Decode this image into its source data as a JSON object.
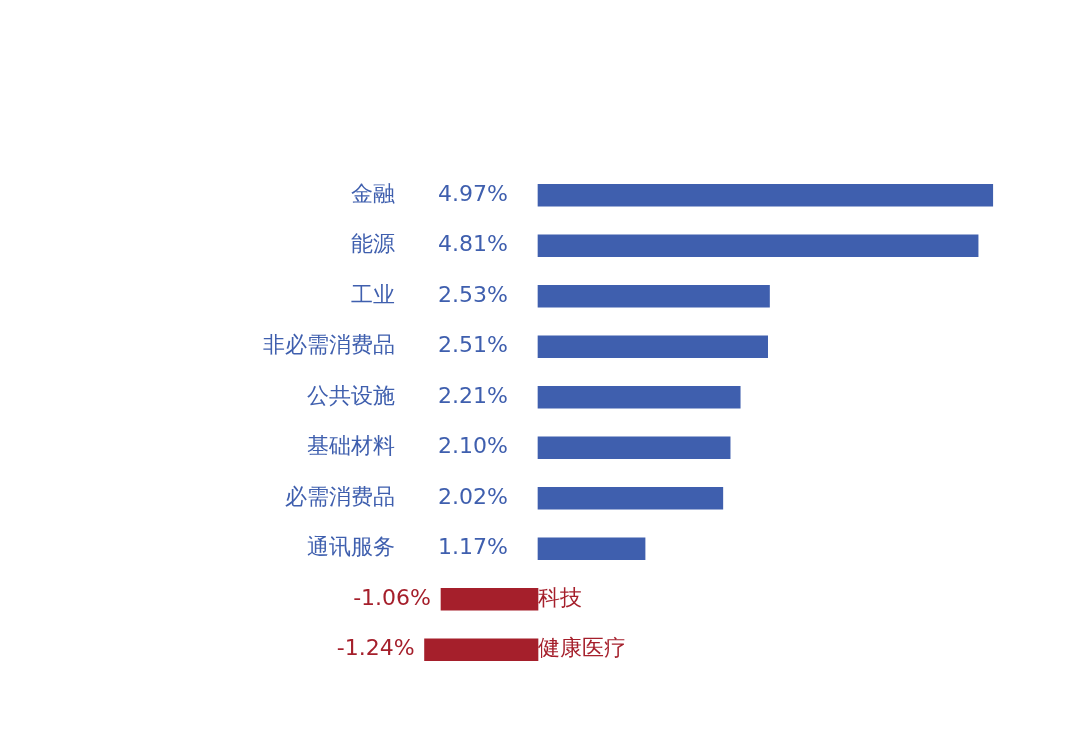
{
  "chart_data": {
    "type": "bar",
    "orientation": "horizontal",
    "categories": [
      "金融",
      "能源",
      "工业",
      "非必需消费品",
      "公共设施",
      "基础材料",
      "必需消费品",
      "通讯服务",
      "科技",
      "健康医疗"
    ],
    "values": [
      4.97,
      4.81,
      2.53,
      2.51,
      2.21,
      2.1,
      2.02,
      1.17,
      -1.06,
      -1.24
    ],
    "value_labels": [
      "4.97%",
      "4.81%",
      "2.53%",
      "2.51%",
      "2.21%",
      "2.10%",
      "2.02%",
      "1.17%",
      "-1.06%",
      "-1.24%"
    ],
    "colors": [
      "#3f5fae",
      "#3f5fae",
      "#3f5fae",
      "#3f5fae",
      "#3f5fae",
      "#3f5fae",
      "#3f5fae",
      "#3f5fae",
      "#a51f2b",
      "#a51f2b"
    ],
    "legend": false
  }
}
